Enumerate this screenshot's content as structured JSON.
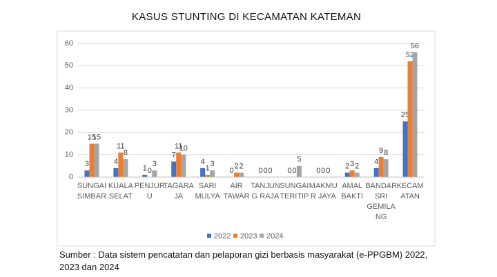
{
  "chart_data": {
    "type": "bar",
    "title": "KASUS STUNTING DI KECAMATAN KATEMAN",
    "categories": [
      "SUNGAI SIMBAR",
      "KUALA SELAT",
      "PENJURU",
      "TAGARAJA",
      "SARI MULYA",
      "AIR TAWAR",
      "TANJUNG RAJA",
      "SUNGAI TERITIP",
      "MAKMUR JAYA",
      "AMAL BAKTI",
      "BANDAR SRI GEMILANG",
      "KECAMATAN"
    ],
    "series": [
      {
        "name": "2022",
        "color": "#4472c4",
        "values": [
          3,
          4,
          1,
          7,
          4,
          0,
          0,
          0,
          0,
          2,
          4,
          25
        ]
      },
      {
        "name": "2023",
        "color": "#ed7d31",
        "values": [
          15,
          11,
          0,
          11,
          1,
          2,
          0,
          0,
          0,
          3,
          9,
          52
        ]
      },
      {
        "name": "2024",
        "color": "#a5a5a5",
        "values": [
          15,
          8,
          3,
          10,
          3,
          2,
          0,
          5,
          0,
          2,
          8,
          56
        ]
      }
    ],
    "ylim": [
      0,
      60
    ],
    "yticks": [
      0,
      10,
      20,
      30,
      40,
      50,
      60
    ],
    "grid": true,
    "legend": "bottom",
    "source": "Sumber : Data sistem pencatatan dan pelaporan gizi berbasis masyarakat (e-PPGBM) 2022, 2023 dan 2024"
  }
}
